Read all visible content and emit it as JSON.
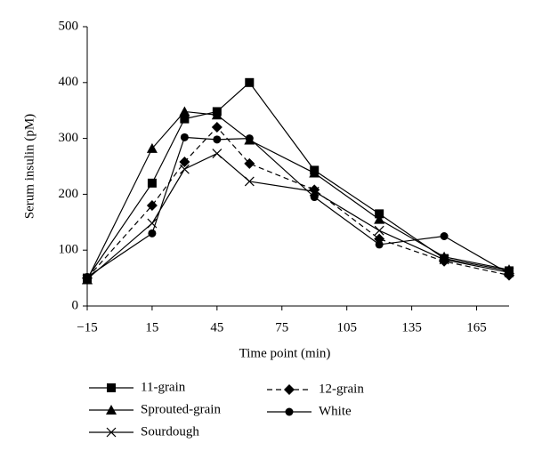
{
  "chart_data": {
    "type": "line",
    "xlabel": "Time point (min)",
    "ylabel": "Serum insulin (pM)",
    "x": [
      -15,
      15,
      30,
      45,
      60,
      90,
      120,
      150,
      180
    ],
    "series": [
      {
        "name": "11-grain",
        "color": "#000000",
        "marker": "square",
        "dash": false,
        "values": [
          50,
          220,
          335,
          348,
          400,
          243,
          165,
          85,
          63
        ]
      },
      {
        "name": "Sprouted-grain",
        "color": "#000000",
        "marker": "triangle",
        "dash": false,
        "values": [
          47,
          282,
          348,
          342,
          297,
          238,
          155,
          88,
          65
        ]
      },
      {
        "name": "Sourdough",
        "color": "#000000",
        "marker": "x",
        "dash": false,
        "values": [
          48,
          148,
          245,
          273,
          223,
          205,
          135,
          83,
          60
        ]
      },
      {
        "name": "12-grain",
        "color": "#000000",
        "marker": "diamond",
        "dash": true,
        "values": [
          50,
          180,
          258,
          320,
          255,
          208,
          120,
          80,
          55
        ]
      },
      {
        "name": "White",
        "color": "#000000",
        "marker": "circle",
        "dash": false,
        "values": [
          52,
          130,
          302,
          298,
          300,
          195,
          110,
          125,
          58
        ]
      }
    ],
    "xlim": [
      -15,
      180
    ],
    "xticks": [
      {
        "value": -15,
        "label": "−15"
      },
      15,
      45,
      75,
      105,
      135,
      165
    ],
    "ylim": [
      0,
      500
    ],
    "yticks": [
      0,
      100,
      200,
      300,
      400,
      500
    ],
    "grid": false
  }
}
